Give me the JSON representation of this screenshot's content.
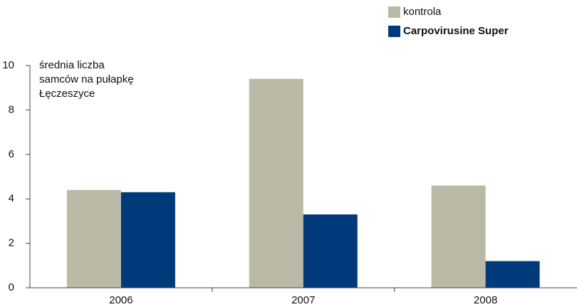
{
  "chart_data": {
    "type": "bar",
    "ylabel": [
      "średnia liczba",
      "samców na pułapkę",
      "Łęczeszyce"
    ],
    "categories": [
      "2006",
      "2007",
      "2008"
    ],
    "series": [
      {
        "name": "kontrola",
        "color": "#b9b9a5",
        "values": [
          4.4,
          9.4,
          4.6
        ]
      },
      {
        "name": "Carpovirusine Super",
        "color": "#003a7a",
        "values": [
          4.3,
          3.3,
          1.2
        ]
      }
    ],
    "ylim": [
      0,
      10
    ],
    "yticks": [
      0,
      2,
      4,
      6,
      8,
      10
    ],
    "grid": false,
    "legend": "top-right"
  }
}
